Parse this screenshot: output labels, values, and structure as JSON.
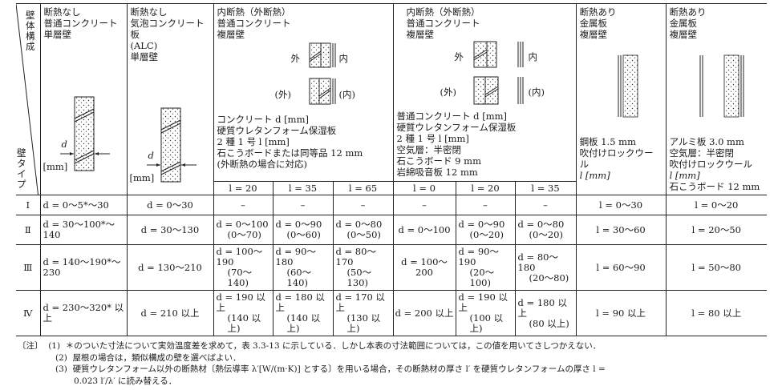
{
  "corner": {
    "top": "壁体構成",
    "bottom": "壁タイプ"
  },
  "columns": [
    {
      "title": [
        "断熱なし",
        "普通コンクリート",
        "単層壁"
      ],
      "diagram_label": "d",
      "unit": "[mm]"
    },
    {
      "title": [
        "断熱なし",
        "気泡コンクリート板",
        "(ALC)",
        "単層壁"
      ],
      "diagram_label": "d",
      "unit": "[mm]"
    },
    {
      "title": [
        "内断熱（外断熱）",
        "普通コンクリート",
        "複層壁"
      ],
      "outer": "外",
      "inner": "内",
      "outer_alt": "(外)",
      "inner_alt": "(内)",
      "spec": [
        "コンクリート d [mm]",
        "硬質ウレタンフォーム保湿板",
        "2 種 1 号 l [mm]",
        "石こうボードまたは同等品 12 mm",
        "(外断熱の場合に対応)"
      ],
      "sub": [
        "l = 20",
        "l = 35",
        "l = 65"
      ]
    },
    {
      "title": [
        "内断熱（外断熱）",
        "普通コンクリート",
        "複層壁"
      ],
      "outer": "外",
      "inner": "内",
      "outer_alt": "(外)",
      "inner_alt": "(内)",
      "spec": [
        "普通コンクリート d [mm]",
        "硬質ウレタンフォーム保湿板",
        "2 種 1 号 l [mm]",
        "空気層：半密閉",
        "石こうボード 9 mm",
        "岩綿吸音板 12 mm"
      ],
      "sub": [
        "l = 0",
        "l = 20",
        "l = 35"
      ]
    },
    {
      "title": [
        "断熱あり",
        "金属板",
        "複層壁"
      ],
      "spec": [
        "鋼板 1.5 mm",
        "吹付けロックウール",
        "l [mm]"
      ]
    },
    {
      "title": [
        "断熱あり",
        "金属板",
        "複層壁"
      ],
      "spec": [
        "アルミ板 3.0 mm",
        "空気層：半密閉",
        "吹付けロックウール",
        "l [mm]",
        "石こうボード 12 mm"
      ]
    }
  ],
  "rows": [
    {
      "type": "Ⅰ",
      "cells": [
        [
          "d = 0〜5*〜30"
        ],
        [
          "d = 0〜30"
        ],
        [
          "–"
        ],
        [
          "–"
        ],
        [
          "–"
        ],
        [
          "–"
        ],
        [
          "–"
        ],
        [
          "–"
        ],
        [
          "l = 0〜30"
        ],
        [
          "l = 0〜20"
        ]
      ]
    },
    {
      "type": "Ⅱ",
      "cells": [
        [
          "d = 30〜100*〜140"
        ],
        [
          "d = 30〜130"
        ],
        [
          "d = 0〜100",
          "(0〜70)"
        ],
        [
          "d = 0〜90",
          "(0〜60)"
        ],
        [
          "d = 0〜80",
          "(0〜50)"
        ],
        [
          "d = 0〜100"
        ],
        [
          "d = 0〜90",
          "(0〜20)"
        ],
        [
          "d = 0〜80",
          "(0〜20)"
        ],
        [
          "l = 30〜60"
        ],
        [
          "l = 20〜50"
        ]
      ]
    },
    {
      "type": "Ⅲ",
      "cells": [
        [
          "d = 140〜190*〜230"
        ],
        [
          "d = 130〜210"
        ],
        [
          "d = 100〜190",
          "(70〜140)"
        ],
        [
          "d = 90〜180",
          "(60〜140)"
        ],
        [
          "d = 80〜170",
          "(50〜130)"
        ],
        [
          "d = 100〜200"
        ],
        [
          "d = 90〜190",
          "(20〜100)"
        ],
        [
          "d = 80〜180",
          "(20〜80)"
        ],
        [
          "l = 60〜90"
        ],
        [
          "l = 50〜80"
        ]
      ]
    },
    {
      "type": "Ⅳ",
      "cells": [
        [
          "d = 230〜320* 以上"
        ],
        [
          "d = 210 以上"
        ],
        [
          "d = 190 以上",
          "(140 以上)"
        ],
        [
          "d = 180 以上",
          "(140 以上)"
        ],
        [
          "d = 170 以上",
          "(130 以上)"
        ],
        [
          "d = 200 以上"
        ],
        [
          "d = 190 以上",
          "(100 以上)"
        ],
        [
          "d = 180 以上",
          "(80 以上)"
        ],
        [
          "l = 90 以上"
        ],
        [
          "l = 80 以上"
        ]
      ]
    }
  ],
  "notes": {
    "label": "〔注〕",
    "items": [
      {
        "num": "(1)",
        "text": "＊のついた寸法について実効温度差を求めて，表 3.3-13 に示している．しかし本表の寸法範囲については，この値を用いてさしつかえない．"
      },
      {
        "num": "(2)",
        "text": "屋根の場合は，類似構成の壁を選べばよい．"
      },
      {
        "num": "(3)",
        "text": "硬質ウレタンフォーム以外の断熱材〔熱伝導率 λ′[W/(m·K)] とする〕を用いる場合，その断熱材の厚さ l′ を硬質ウレタンフォームの厚さ l =",
        "cont": "0.023 l′/λ′ に読み替える．"
      }
    ]
  }
}
